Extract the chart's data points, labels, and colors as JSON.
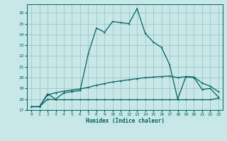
{
  "xlabel": "Humidex (Indice chaleur)",
  "ylabel": "",
  "background_color": "#c8e8e8",
  "grid_color": "#9bbebe",
  "line_color": "#006060",
  "xlim": [
    -0.5,
    23.5
  ],
  "ylim": [
    17,
    26.8
  ],
  "yticks": [
    17,
    18,
    19,
    20,
    21,
    22,
    23,
    24,
    25,
    26
  ],
  "xticks": [
    0,
    1,
    2,
    3,
    4,
    5,
    6,
    7,
    8,
    9,
    10,
    11,
    12,
    13,
    14,
    15,
    16,
    17,
    18,
    19,
    20,
    21,
    22,
    23
  ],
  "line1_x": [
    0,
    1,
    2,
    3,
    4,
    5,
    6,
    7,
    8,
    9,
    10,
    11,
    12,
    13,
    14,
    15,
    16,
    17,
    18,
    19,
    20,
    21,
    22,
    23
  ],
  "line1_y": [
    17.3,
    17.3,
    18.5,
    18.0,
    18.6,
    18.7,
    18.8,
    22.2,
    24.6,
    24.2,
    25.2,
    25.1,
    25.0,
    26.4,
    24.1,
    23.3,
    22.8,
    21.2,
    18.0,
    20.1,
    20.0,
    18.9,
    19.0,
    18.2
  ],
  "line2_x": [
    0,
    1,
    2,
    3,
    4,
    5,
    6,
    7,
    8,
    9,
    10,
    11,
    12,
    13,
    14,
    15,
    16,
    17,
    18,
    19,
    20,
    21,
    22,
    23
  ],
  "line2_y": [
    17.3,
    17.3,
    18.4,
    18.6,
    18.75,
    18.85,
    18.95,
    19.1,
    19.3,
    19.45,
    19.6,
    19.7,
    19.8,
    19.9,
    20.0,
    20.05,
    20.1,
    20.15,
    20.0,
    20.1,
    20.05,
    19.5,
    19.2,
    18.7
  ],
  "line3_x": [
    0,
    1,
    2,
    3,
    4,
    5,
    6,
    7,
    8,
    9,
    10,
    11,
    12,
    13,
    14,
    15,
    16,
    17,
    18,
    19,
    20,
    21,
    22,
    23
  ],
  "line3_y": [
    17.3,
    17.3,
    18.0,
    17.95,
    17.95,
    17.95,
    17.95,
    17.95,
    17.95,
    17.95,
    17.95,
    17.95,
    17.95,
    17.95,
    17.95,
    17.95,
    17.95,
    17.95,
    17.95,
    17.95,
    17.95,
    17.95,
    17.95,
    18.1
  ]
}
